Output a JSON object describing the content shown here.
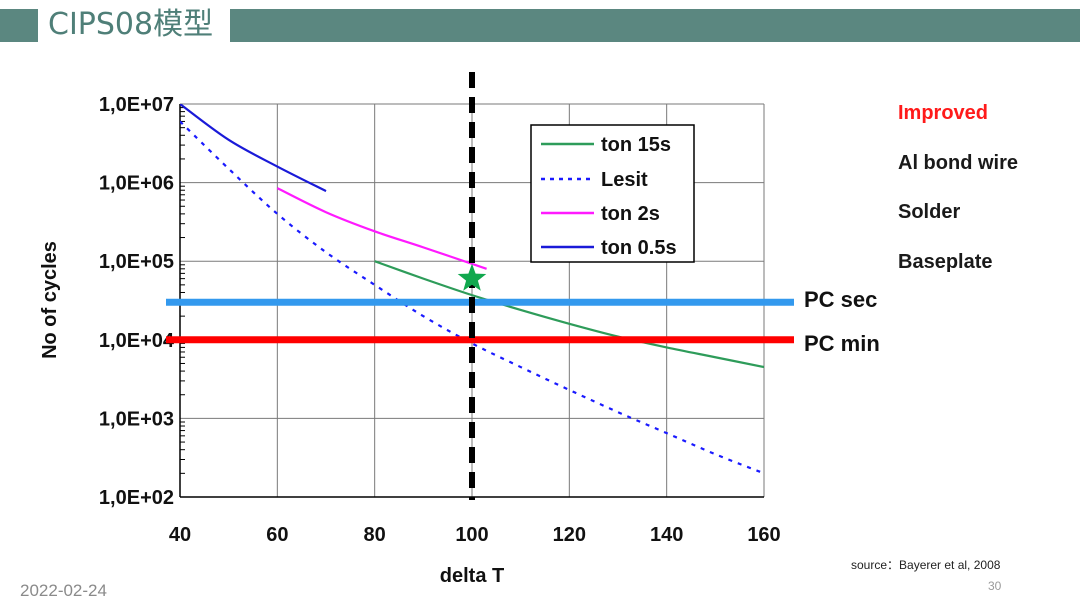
{
  "header": {
    "title": "CIPS08模型"
  },
  "chart_data": {
    "type": "line",
    "title": "",
    "xlabel": "delta T",
    "ylabel": "No of cycles",
    "xlim": [
      40,
      160
    ],
    "ylim": [
      100,
      10000000
    ],
    "yscale": "log",
    "x_ticks": [
      "40",
      "60",
      "80",
      "100",
      "120",
      "140",
      "160"
    ],
    "y_ticks": [
      "1,0E+02",
      "1,0E+03",
      "1,0E+04",
      "1,0E+05",
      "1,0E+06",
      "1,0E+07"
    ],
    "grid": true,
    "legend_position": "top-center",
    "series": [
      {
        "name": "ton 15s",
        "color": "#2e9c5a",
        "style": "solid",
        "x": [
          80,
          90,
          100,
          110,
          120,
          130,
          140,
          150,
          160
        ],
        "y": [
          100000,
          60000,
          37000,
          24000,
          16000,
          11000,
          8000,
          6000,
          4500
        ]
      },
      {
        "name": "Lesit",
        "color": "#1a1aff",
        "style": "dotted",
        "x": [
          40,
          50,
          60,
          70,
          80,
          90,
          100,
          110,
          120,
          130,
          140,
          150,
          160
        ],
        "y": [
          6000000,
          1500000,
          400000,
          130000,
          50000,
          20000,
          9000,
          4500,
          2300,
          1200,
          650,
          350,
          200
        ]
      },
      {
        "name": "ton 2s",
        "color": "#ff1aff",
        "style": "solid",
        "x": [
          60,
          70,
          80,
          90,
          103
        ],
        "y": [
          850000,
          420000,
          240000,
          150000,
          80000
        ]
      },
      {
        "name": "ton 0.5s",
        "color": "#1a1ad8",
        "style": "solid",
        "x": [
          40,
          50,
          60,
          70
        ],
        "y": [
          10000000,
          3500000,
          1600000,
          780000
        ]
      }
    ],
    "reference_lines": [
      {
        "label": "PC sec",
        "value": 30000,
        "color": "#3399ee"
      },
      {
        "label": "PC min",
        "value": 10000,
        "color": "#ff0000"
      }
    ],
    "vertical_line": {
      "x": 100,
      "color": "#000000",
      "style": "dashed"
    },
    "marker": {
      "shape": "star",
      "x": 100,
      "y": 60000,
      "color": "#11a84e"
    }
  },
  "side_labels": [
    {
      "text": "Improved",
      "color": "#ff1a1a"
    },
    {
      "text": "Al bond wire"
    },
    {
      "text": "Solder"
    },
    {
      "text": "Baseplate"
    }
  ],
  "source_text": "source：Bayerer et al, 2008",
  "date_text": "2022-02-24",
  "page_number": "30"
}
